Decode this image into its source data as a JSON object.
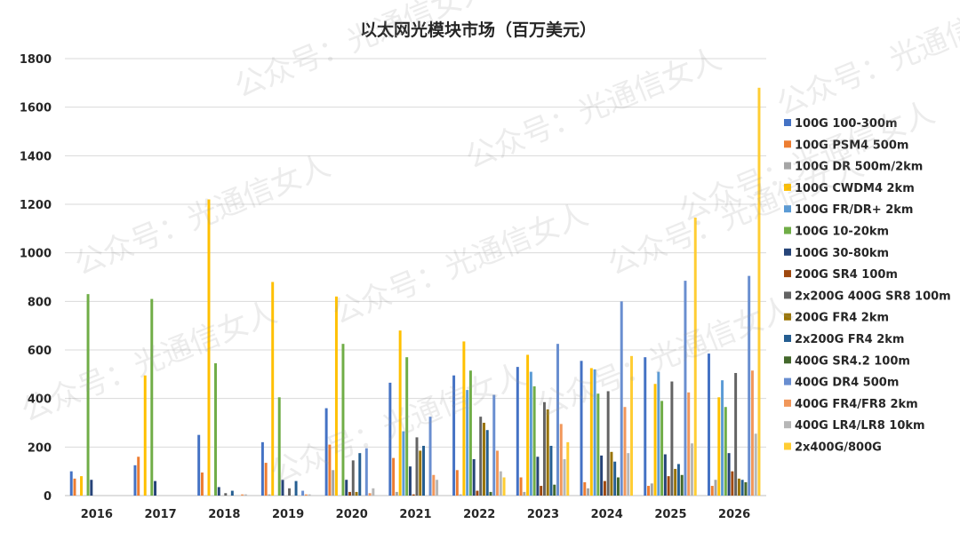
{
  "chart_data": {
    "type": "bar",
    "title": "以太网光模块市场（百万美元）",
    "ylim": [
      0,
      1800
    ],
    "yticks": [
      0,
      200,
      400,
      600,
      800,
      1000,
      1200,
      1400,
      1600,
      1800
    ],
    "grid": true,
    "legend_position": "right",
    "categories": [
      "2016",
      "2017",
      "2018",
      "2019",
      "2020",
      "2021",
      "2022",
      "2023",
      "2024",
      "2025",
      "2026"
    ],
    "series": [
      {
        "name": "100G  100-300m",
        "color": "#4472C4",
        "values": [
          100,
          125,
          250,
          220,
          360,
          465,
          495,
          530,
          555,
          570,
          585
        ]
      },
      {
        "name": "100G PSM4 500m",
        "color": "#ED7D31",
        "values": [
          70,
          160,
          95,
          135,
          210,
          155,
          105,
          75,
          55,
          40,
          40
        ]
      },
      {
        "name": "100G DR 500m/2km",
        "color": "#A5A5A5",
        "values": [
          0,
          0,
          0,
          5,
          105,
          15,
          5,
          15,
          30,
          50,
          65
        ]
      },
      {
        "name": "100G CWDM4 2km",
        "color": "#FFC000",
        "values": [
          80,
          495,
          1220,
          880,
          820,
          680,
          635,
          580,
          525,
          460,
          405
        ]
      },
      {
        "name": "100G FR/DR+ 2km",
        "color": "#5B9BD5",
        "values": [
          0,
          0,
          0,
          0,
          0,
          265,
          435,
          510,
          520,
          510,
          475
        ]
      },
      {
        "name": "100G  10-20km",
        "color": "#70AD47",
        "values": [
          830,
          810,
          545,
          405,
          625,
          570,
          515,
          450,
          420,
          390,
          365
        ]
      },
      {
        "name": "100G  30-80km",
        "color": "#264478",
        "values": [
          65,
          60,
          35,
          65,
          65,
          120,
          150,
          160,
          165,
          170,
          175
        ]
      },
      {
        "name": "200G SR4 100m",
        "color": "#9E480E",
        "values": [
          0,
          0,
          0,
          0,
          15,
          5,
          20,
          40,
          60,
          80,
          100
        ]
      },
      {
        "name": "2x200G 400G SR8 100m",
        "color": "#636363",
        "values": [
          0,
          0,
          10,
          30,
          145,
          240,
          325,
          385,
          430,
          470,
          505
        ]
      },
      {
        "name": "200G FR4 2km",
        "color": "#997300",
        "values": [
          0,
          0,
          0,
          0,
          15,
          185,
          300,
          355,
          180,
          110,
          70
        ]
      },
      {
        "name": "2x200G FR4 2km",
        "color": "#255E91",
        "values": [
          0,
          0,
          20,
          60,
          175,
          205,
          270,
          205,
          140,
          130,
          65
        ]
      },
      {
        "name": "400G SR4.2 100m",
        "color": "#43682B",
        "values": [
          0,
          0,
          0,
          0,
          0,
          0,
          15,
          45,
          75,
          85,
          55
        ]
      },
      {
        "name": "400G DR4 500m",
        "color": "#698ED0",
        "values": [
          0,
          0,
          0,
          20,
          195,
          325,
          415,
          625,
          800,
          885,
          905
        ]
      },
      {
        "name": "400G FR4/FR8 2km",
        "color": "#F1975A",
        "values": [
          0,
          0,
          5,
          5,
          10,
          85,
          185,
          295,
          365,
          425,
          515
        ]
      },
      {
        "name": "400G LR4/LR8 10km",
        "color": "#B7B7B7",
        "values": [
          0,
          0,
          5,
          5,
          30,
          65,
          100,
          150,
          175,
          215,
          255
        ]
      },
      {
        "name": "2x400G/800G",
        "color": "#FFCD33",
        "values": [
          0,
          0,
          0,
          0,
          0,
          0,
          75,
          220,
          575,
          1145,
          1680
        ]
      }
    ]
  },
  "watermark": "公众号：光通信女人"
}
